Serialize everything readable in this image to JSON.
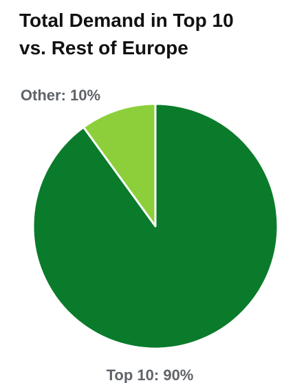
{
  "chart_data": {
    "type": "pie",
    "title_lines": [
      "Total Demand in Top 10",
      "vs. Rest of Europe"
    ],
    "slices": [
      {
        "label": "Top 10: 90%",
        "name": "Top 10",
        "value": 90,
        "color": "#0a7b2b"
      },
      {
        "label": "Other: 10%",
        "name": "Other",
        "value": 10,
        "color": "#8ccf3b"
      }
    ],
    "label_color": "#5f6368",
    "separator_color": "#ffffff"
  }
}
